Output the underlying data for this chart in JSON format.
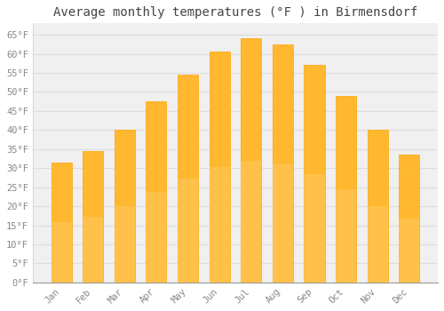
{
  "title": "Average monthly temperatures (°F ) in Birmensdorf",
  "months": [
    "Jan",
    "Feb",
    "Mar",
    "Apr",
    "May",
    "Jun",
    "Jul",
    "Aug",
    "Sep",
    "Oct",
    "Nov",
    "Dec"
  ],
  "values": [
    31.5,
    34.5,
    40.0,
    47.5,
    54.5,
    60.5,
    64.0,
    62.5,
    57.0,
    49.0,
    40.0,
    33.5
  ],
  "bar_color_top": "#FFA500",
  "bar_color_bottom": "#FFD060",
  "bar_color": "#FFB830",
  "bar_edge_color": "#FFA500",
  "background_color": "#FFFFFF",
  "plot_bg_color": "#F0F0F0",
  "grid_color": "#DDDDDD",
  "ylim": [
    0,
    68
  ],
  "yticks": [
    0,
    5,
    10,
    15,
    20,
    25,
    30,
    35,
    40,
    45,
    50,
    55,
    60,
    65
  ],
  "ytick_labels": [
    "0°F",
    "5°F",
    "10°F",
    "15°F",
    "20°F",
    "25°F",
    "30°F",
    "35°F",
    "40°F",
    "45°F",
    "50°F",
    "55°F",
    "60°F",
    "65°F"
  ],
  "title_fontsize": 10,
  "tick_fontsize": 7.5,
  "tick_color": "#888888",
  "title_color": "#444444"
}
